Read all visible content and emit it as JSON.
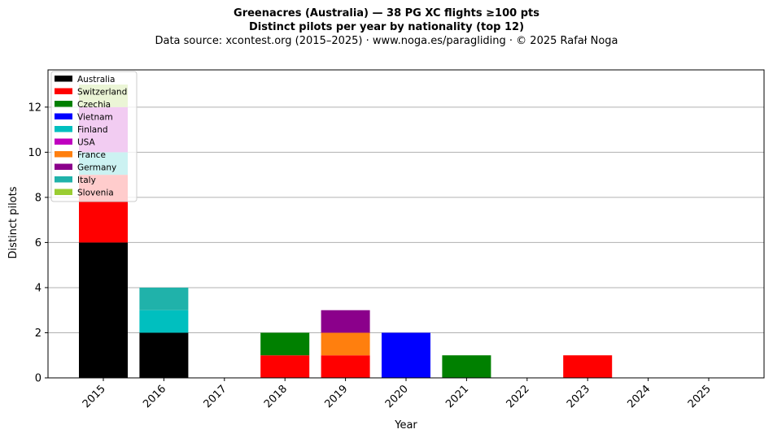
{
  "chart_data": {
    "type": "bar",
    "stacked": true,
    "title": "Greenacres (Australia)  —  38 PG XC flights ≥100 pts",
    "subtitle": "Distinct pilots per year by nationality (top 12)",
    "source": "Data source: xcontest.org (2015–2025)  ·  www.noga.es/paragliding  ·  © 2025 Rafał Noga",
    "xlabel": "Year",
    "ylabel": "Distinct pilots",
    "ylim": [
      0,
      13.65
    ],
    "yticks": [
      0,
      2,
      4,
      6,
      8,
      10,
      12
    ],
    "grid": "horizontal",
    "legend_position": "top-left",
    "categories": [
      "2015",
      "2016",
      "2017",
      "2018",
      "2019",
      "2020",
      "2021",
      "2022",
      "2023",
      "2024",
      "2025"
    ],
    "series": [
      {
        "name": "Australia",
        "color": "#000000",
        "values": [
          6,
          2,
          0,
          0,
          0,
          0,
          0,
          0,
          0,
          0,
          0
        ]
      },
      {
        "name": "Switzerland",
        "color": "#ff0000",
        "values": [
          3,
          0,
          0,
          1,
          1,
          0,
          0,
          0,
          1,
          0,
          0
        ]
      },
      {
        "name": "Czechia",
        "color": "#008000",
        "values": [
          0,
          0,
          0,
          1,
          0,
          0,
          1,
          0,
          0,
          0,
          0
        ]
      },
      {
        "name": "Vietnam",
        "color": "#0000ff",
        "values": [
          0,
          0,
          0,
          0,
          0,
          2,
          0,
          0,
          0,
          0,
          0
        ]
      },
      {
        "name": "Finland",
        "color": "#00bfbf",
        "values": [
          1,
          1,
          0,
          0,
          0,
          0,
          0,
          0,
          0,
          0,
          0
        ]
      },
      {
        "name": "USA",
        "color": "#bf00bf",
        "values": [
          2,
          0,
          0,
          0,
          0,
          0,
          0,
          0,
          0,
          0,
          0
        ]
      },
      {
        "name": "France",
        "color": "#ff7f0e",
        "values": [
          0,
          0,
          0,
          0,
          1,
          0,
          0,
          0,
          0,
          0,
          0
        ]
      },
      {
        "name": "Germany",
        "color": "#8b008b",
        "values": [
          0,
          0,
          0,
          0,
          1,
          0,
          0,
          0,
          0,
          0,
          0
        ]
      },
      {
        "name": "Italy",
        "color": "#20b2aa",
        "values": [
          0,
          1,
          0,
          0,
          0,
          0,
          0,
          0,
          0,
          0,
          0
        ]
      },
      {
        "name": "Slovenia",
        "color": "#9acd32",
        "values": [
          1,
          0,
          0,
          0,
          0,
          0,
          0,
          0,
          0,
          0,
          0
        ]
      }
    ]
  }
}
